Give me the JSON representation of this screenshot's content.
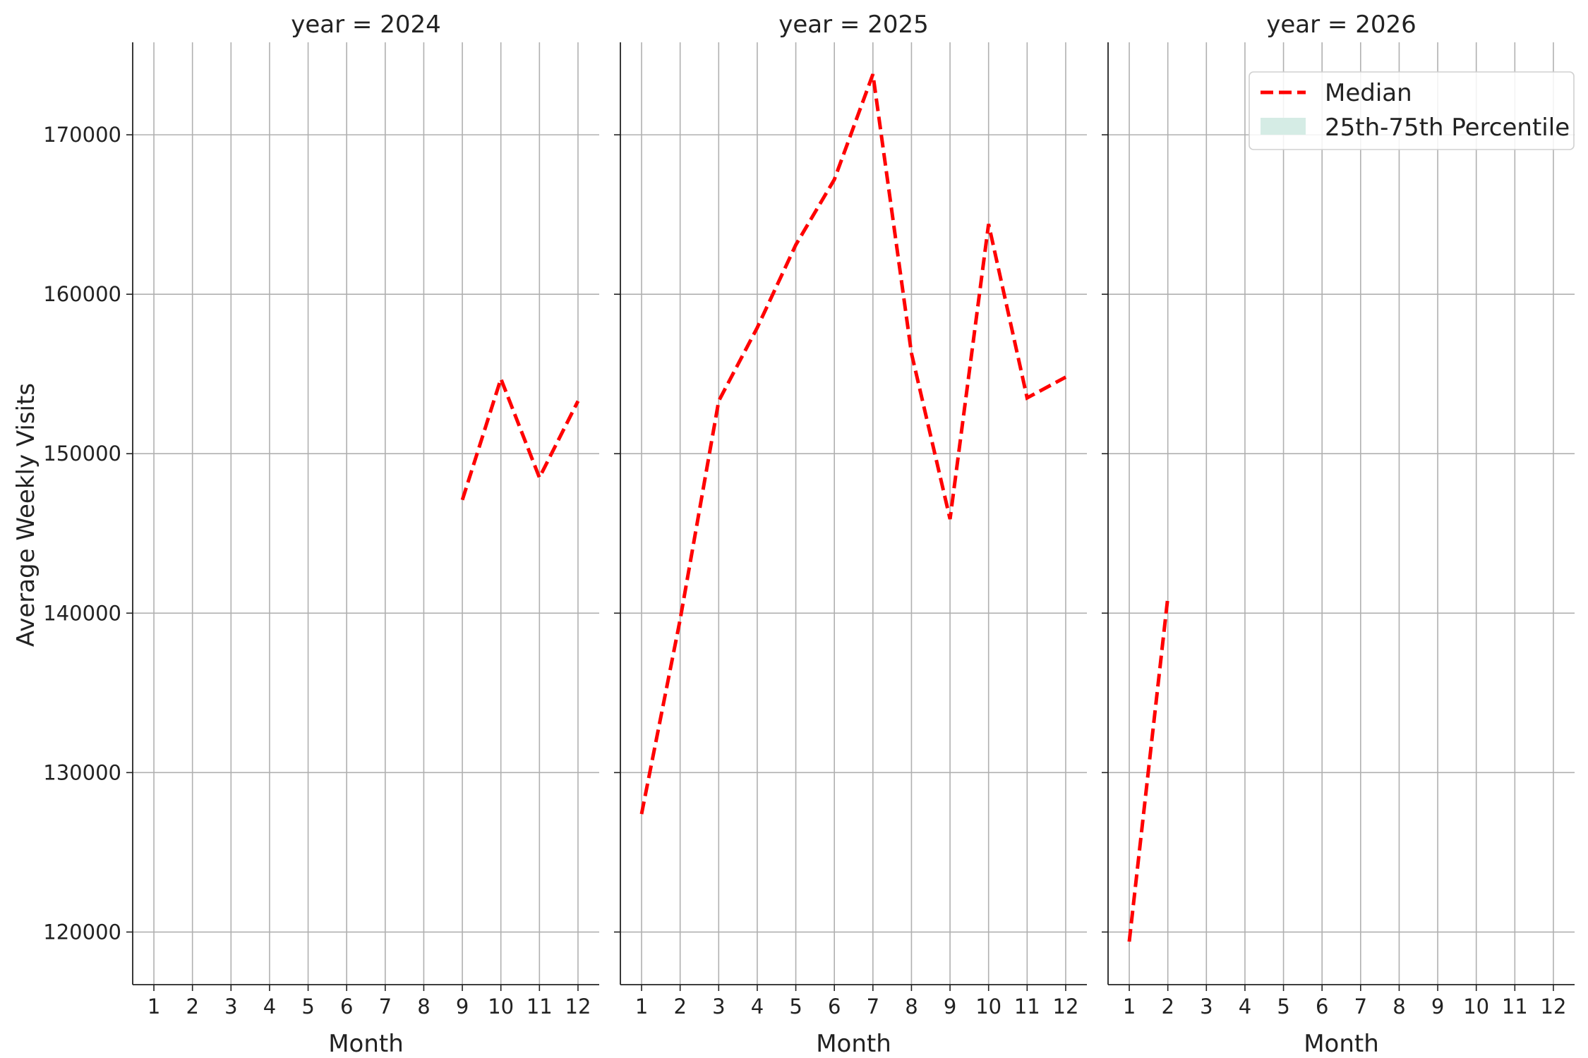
{
  "chart_data": {
    "type": "line",
    "ylabel": "Average Weekly Visits",
    "xlabel": "Month",
    "x_ticks": [
      1,
      2,
      3,
      4,
      5,
      6,
      7,
      8,
      9,
      10,
      11,
      12
    ],
    "y_ticks": [
      120000,
      130000,
      140000,
      150000,
      160000,
      170000
    ],
    "ylim": [
      116700,
      175800
    ],
    "xlim": [
      0.45,
      12.55
    ],
    "grid": true,
    "legend": {
      "placement": "top-right",
      "entries": [
        "Median",
        "25th-75th Percentile"
      ]
    },
    "colors": {
      "median": "#ff0000",
      "percentile_band": "#d5ece5",
      "grid": "#b0b0b0",
      "axis": "#222222"
    },
    "panels": [
      {
        "title": "year = 2024",
        "series": [
          {
            "name": "Median",
            "x": [
              9,
              10,
              11,
              12
            ],
            "y": [
              147100,
              154700,
              148500,
              153300
            ]
          }
        ]
      },
      {
        "title": "year = 2025",
        "series": [
          {
            "name": "Median",
            "x": [
              1,
              2,
              3,
              4,
              5,
              6,
              7,
              8,
              9,
              10,
              11,
              12
            ],
            "y": [
              127400,
              139600,
              153300,
              157900,
              163100,
              167200,
              173800,
              156300,
              145900,
              164400,
              153500,
              154800
            ]
          }
        ]
      },
      {
        "title": "year = 2026",
        "series": [
          {
            "name": "Median",
            "x": [
              1,
              2
            ],
            "y": [
              119400,
              141000
            ]
          }
        ]
      }
    ]
  }
}
